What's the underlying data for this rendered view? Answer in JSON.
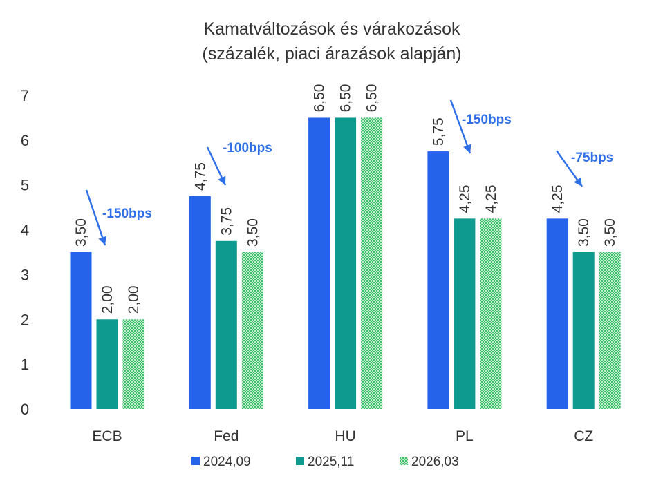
{
  "chart_data": {
    "type": "bar",
    "title": "Kamatváltozások és várakozások",
    "subtitle": "(százalék, piaci árazások alapján)",
    "categories": [
      "ECB",
      "Fed",
      "HU",
      "PL",
      "CZ"
    ],
    "series": [
      {
        "name": "2024,09",
        "values": [
          3.5,
          4.75,
          6.5,
          5.75,
          4.25
        ],
        "labels": [
          "3,50",
          "4,75",
          "6,50",
          "5,75",
          "4,25"
        ],
        "color": "#2563eb",
        "pattern": "solid"
      },
      {
        "name": "2025,11",
        "values": [
          2.0,
          3.75,
          6.5,
          4.25,
          3.5
        ],
        "labels": [
          "2,00",
          "3,75",
          "6,50",
          "4,25",
          "3,50"
        ],
        "color": "#0e9a8f",
        "pattern": "solid"
      },
      {
        "name": "2026,03",
        "values": [
          2.0,
          3.5,
          6.5,
          4.25,
          3.5
        ],
        "labels": [
          "2,00",
          "3,50",
          "6,50",
          "4,25",
          "3,50"
        ],
        "color": "#4cc97a",
        "pattern": "checker"
      }
    ],
    "ylim": [
      0,
      7
    ],
    "yticks": [
      "0",
      "1",
      "2",
      "3",
      "4",
      "5",
      "6",
      "7"
    ],
    "grid": false,
    "legend": "bottom",
    "annotations": [
      {
        "category": "ECB",
        "text": "-150bps"
      },
      {
        "category": "Fed",
        "text": "-100bps"
      },
      {
        "category": "PL",
        "text": "-150bps"
      },
      {
        "category": "CZ",
        "text": "-75bps"
      }
    ],
    "annotation_color": "#2f6fe8"
  }
}
